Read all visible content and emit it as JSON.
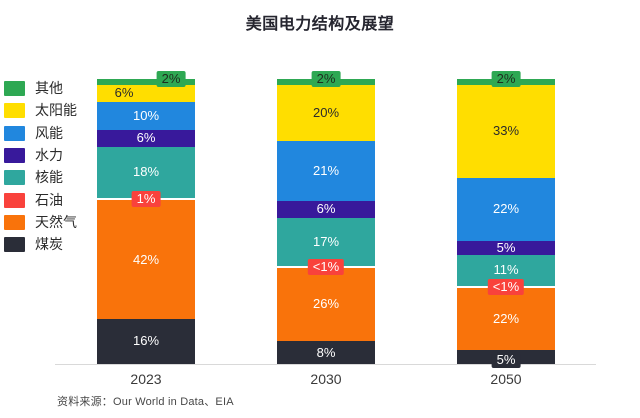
{
  "chart_data": {
    "type": "bar",
    "subtype": "stacked-percentage-column",
    "title": "美国电力结构及展望",
    "source": "资料来源：Our World in Data、EIA",
    "categories": [
      "2023",
      "2030",
      "2050"
    ],
    "legend_position": "left",
    "grid": false,
    "axis_line_color": "#d9d9d9",
    "label_colors": {
      "light": "#ffffff",
      "dark": "#2b2b2b"
    },
    "series": [
      {
        "key": "coal",
        "name": "煤炭",
        "color": "#2a2d38",
        "label_color": "#ffffff"
      },
      {
        "key": "gas",
        "name": "天然气",
        "color": "#f9730b",
        "label_color": "#ffffff"
      },
      {
        "key": "oil",
        "name": "石油",
        "color": "#f9423c",
        "label_color": "#ffffff"
      },
      {
        "key": "nuclear",
        "name": "核能",
        "color": "#2fa79e",
        "label_color": "#ffffff"
      },
      {
        "key": "hydro",
        "name": "水力",
        "color": "#38199b",
        "label_color": "#ffffff"
      },
      {
        "key": "wind",
        "name": "风能",
        "color": "#2187de",
        "label_color": "#ffffff"
      },
      {
        "key": "solar",
        "name": "太阳能",
        "color": "#ffde00",
        "label_color": "#2b2b2b"
      },
      {
        "key": "other",
        "name": "其他",
        "color": "#2ea853",
        "label_color": "#1e2b1e"
      }
    ],
    "bars": [
      {
        "category": "2023",
        "segments": [
          {
            "key": "coal",
            "label": "16%",
            "value": 16
          },
          {
            "key": "gas",
            "label": "42%",
            "value": 42
          },
          {
            "key": "oil",
            "label": "1%",
            "value": 1,
            "boxed": true
          },
          {
            "key": "nuclear",
            "label": "18%",
            "value": 18
          },
          {
            "key": "hydro",
            "label": "6%",
            "value": 6
          },
          {
            "key": "wind",
            "label": "10%",
            "value": 10
          },
          {
            "key": "solar",
            "label": "6%",
            "value": 6,
            "dx": -22
          },
          {
            "key": "other",
            "label": "2%",
            "value": 2,
            "boxed": true,
            "dx": 25,
            "dy": -3
          }
        ]
      },
      {
        "category": "2030",
        "segments": [
          {
            "key": "coal",
            "label": "8%",
            "value": 8
          },
          {
            "key": "gas",
            "label": "26%",
            "value": 26
          },
          {
            "key": "oil",
            "label": "<1%",
            "value": 0.5,
            "boxed": true
          },
          {
            "key": "nuclear",
            "label": "17%",
            "value": 17
          },
          {
            "key": "hydro",
            "label": "6%",
            "value": 6
          },
          {
            "key": "wind",
            "label": "21%",
            "value": 21
          },
          {
            "key": "solar",
            "label": "20%",
            "value": 20
          },
          {
            "key": "other",
            "label": "2%",
            "value": 2,
            "boxed": true,
            "dy": -3
          }
        ]
      },
      {
        "category": "2050",
        "segments": [
          {
            "key": "coal",
            "label": "5%",
            "value": 5,
            "boxed": true,
            "dy": 3
          },
          {
            "key": "gas",
            "label": "22%",
            "value": 22
          },
          {
            "key": "oil",
            "label": "<1%",
            "value": 0.5,
            "boxed": true
          },
          {
            "key": "nuclear",
            "label": "11%",
            "value": 11
          },
          {
            "key": "hydro",
            "label": "5%",
            "value": 5
          },
          {
            "key": "wind",
            "label": "22%",
            "value": 22
          },
          {
            "key": "solar",
            "label": "33%",
            "value": 33
          },
          {
            "key": "other",
            "label": "2%",
            "value": 2,
            "boxed": true,
            "dy": -3
          }
        ]
      }
    ]
  }
}
